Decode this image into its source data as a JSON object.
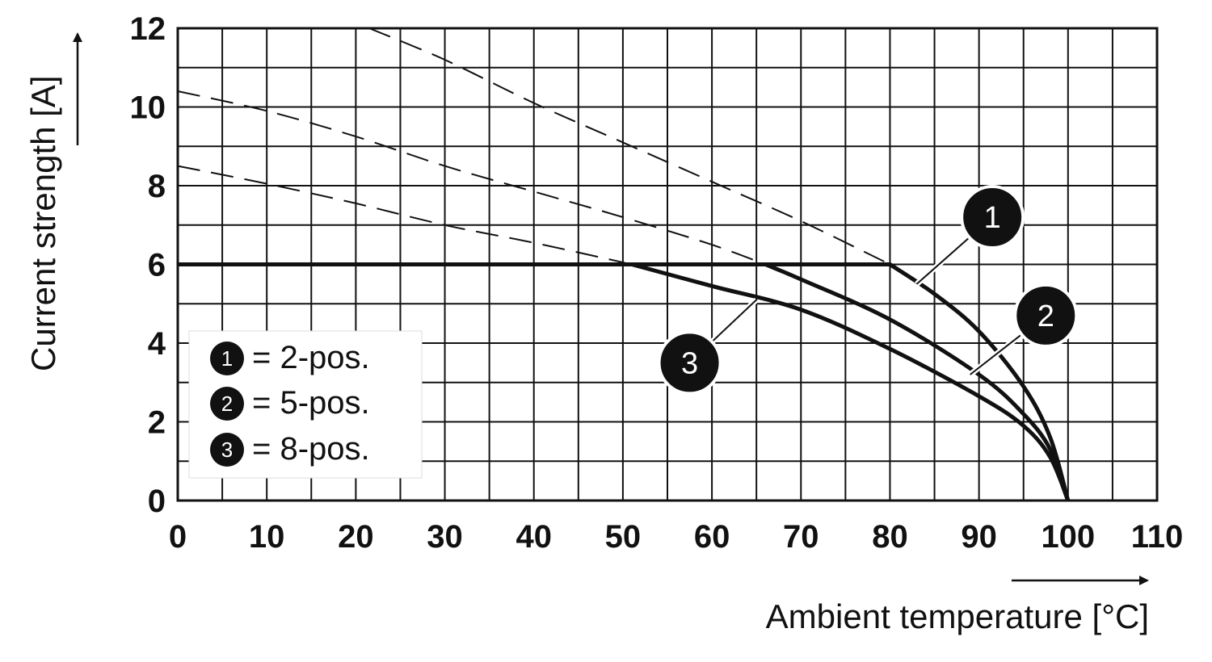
{
  "chart_data": {
    "type": "line",
    "xlabel": "Ambient temperature [°C]",
    "ylabel": "Current strength [A]",
    "xlim": [
      0,
      110
    ],
    "ylim": [
      0,
      12
    ],
    "x_ticks": [
      "0",
      "10",
      "20",
      "30",
      "40",
      "50",
      "60",
      "70",
      "80",
      "90",
      "100",
      "110"
    ],
    "y_ticks": [
      "0",
      "2",
      "4",
      "6",
      "8",
      "10",
      "12"
    ],
    "x_tick_values": [
      0,
      10,
      20,
      30,
      40,
      50,
      60,
      70,
      80,
      90,
      100,
      110
    ],
    "y_tick_values": [
      0,
      2,
      4,
      6,
      8,
      10,
      12
    ],
    "grid": {
      "x_step": 5,
      "y_step": 1
    },
    "series": [
      {
        "id": "1",
        "color": "#111111",
        "solid": [
          [
            0,
            6
          ],
          [
            80,
            6
          ],
          [
            85,
            5.25
          ],
          [
            90,
            4.3
          ],
          [
            95,
            2.9
          ],
          [
            98,
            1.6
          ],
          [
            100,
            0
          ]
        ],
        "dashed": [
          [
            21.5,
            12
          ],
          [
            30,
            11.2
          ],
          [
            40,
            10.1
          ],
          [
            50,
            9.1
          ],
          [
            60,
            8.1
          ],
          [
            70,
            7.1
          ],
          [
            80,
            6
          ]
        ]
      },
      {
        "id": "2",
        "color": "#111111",
        "solid": [
          [
            66,
            6
          ],
          [
            70,
            5.62
          ],
          [
            80,
            4.6
          ],
          [
            90,
            3.2
          ],
          [
            95,
            2.2
          ],
          [
            98,
            1.3
          ],
          [
            100,
            0
          ]
        ],
        "dashed": [
          [
            0,
            10.4
          ],
          [
            10,
            9.9
          ],
          [
            20,
            9.25
          ],
          [
            30,
            8.5
          ],
          [
            40,
            7.85
          ],
          [
            50,
            7.2
          ],
          [
            60,
            6.5
          ],
          [
            66,
            6
          ]
        ]
      },
      {
        "id": "3",
        "color": "#111111",
        "solid": [
          [
            51,
            6
          ],
          [
            60,
            5.45
          ],
          [
            70,
            4.85
          ],
          [
            80,
            3.85
          ],
          [
            90,
            2.65
          ],
          [
            95,
            1.9
          ],
          [
            98,
            1.1
          ],
          [
            100,
            0
          ]
        ],
        "dashed": [
          [
            0,
            8.5
          ],
          [
            10,
            8.05
          ],
          [
            20,
            7.55
          ],
          [
            30,
            7.0
          ],
          [
            40,
            6.55
          ],
          [
            51,
            6
          ]
        ]
      }
    ],
    "callouts": [
      {
        "id": "1",
        "label": "1",
        "anchor": [
          83,
          5.5
        ],
        "badge_at": [
          91.5,
          7.2
        ]
      },
      {
        "id": "2",
        "label": "2",
        "anchor": [
          89,
          3.2
        ],
        "badge_at": [
          97.5,
          4.7
        ]
      },
      {
        "id": "3",
        "label": "3",
        "anchor": [
          65,
          5.1
        ],
        "badge_at": [
          57.5,
          3.5
        ]
      }
    ],
    "legend": [
      {
        "id": "1",
        "label": "1",
        "text": "= 2-pos."
      },
      {
        "id": "2",
        "label": "2",
        "text": "= 5-pos."
      },
      {
        "id": "3",
        "label": "3",
        "text": "= 8-pos."
      }
    ],
    "legend_position": "bottom-left"
  }
}
